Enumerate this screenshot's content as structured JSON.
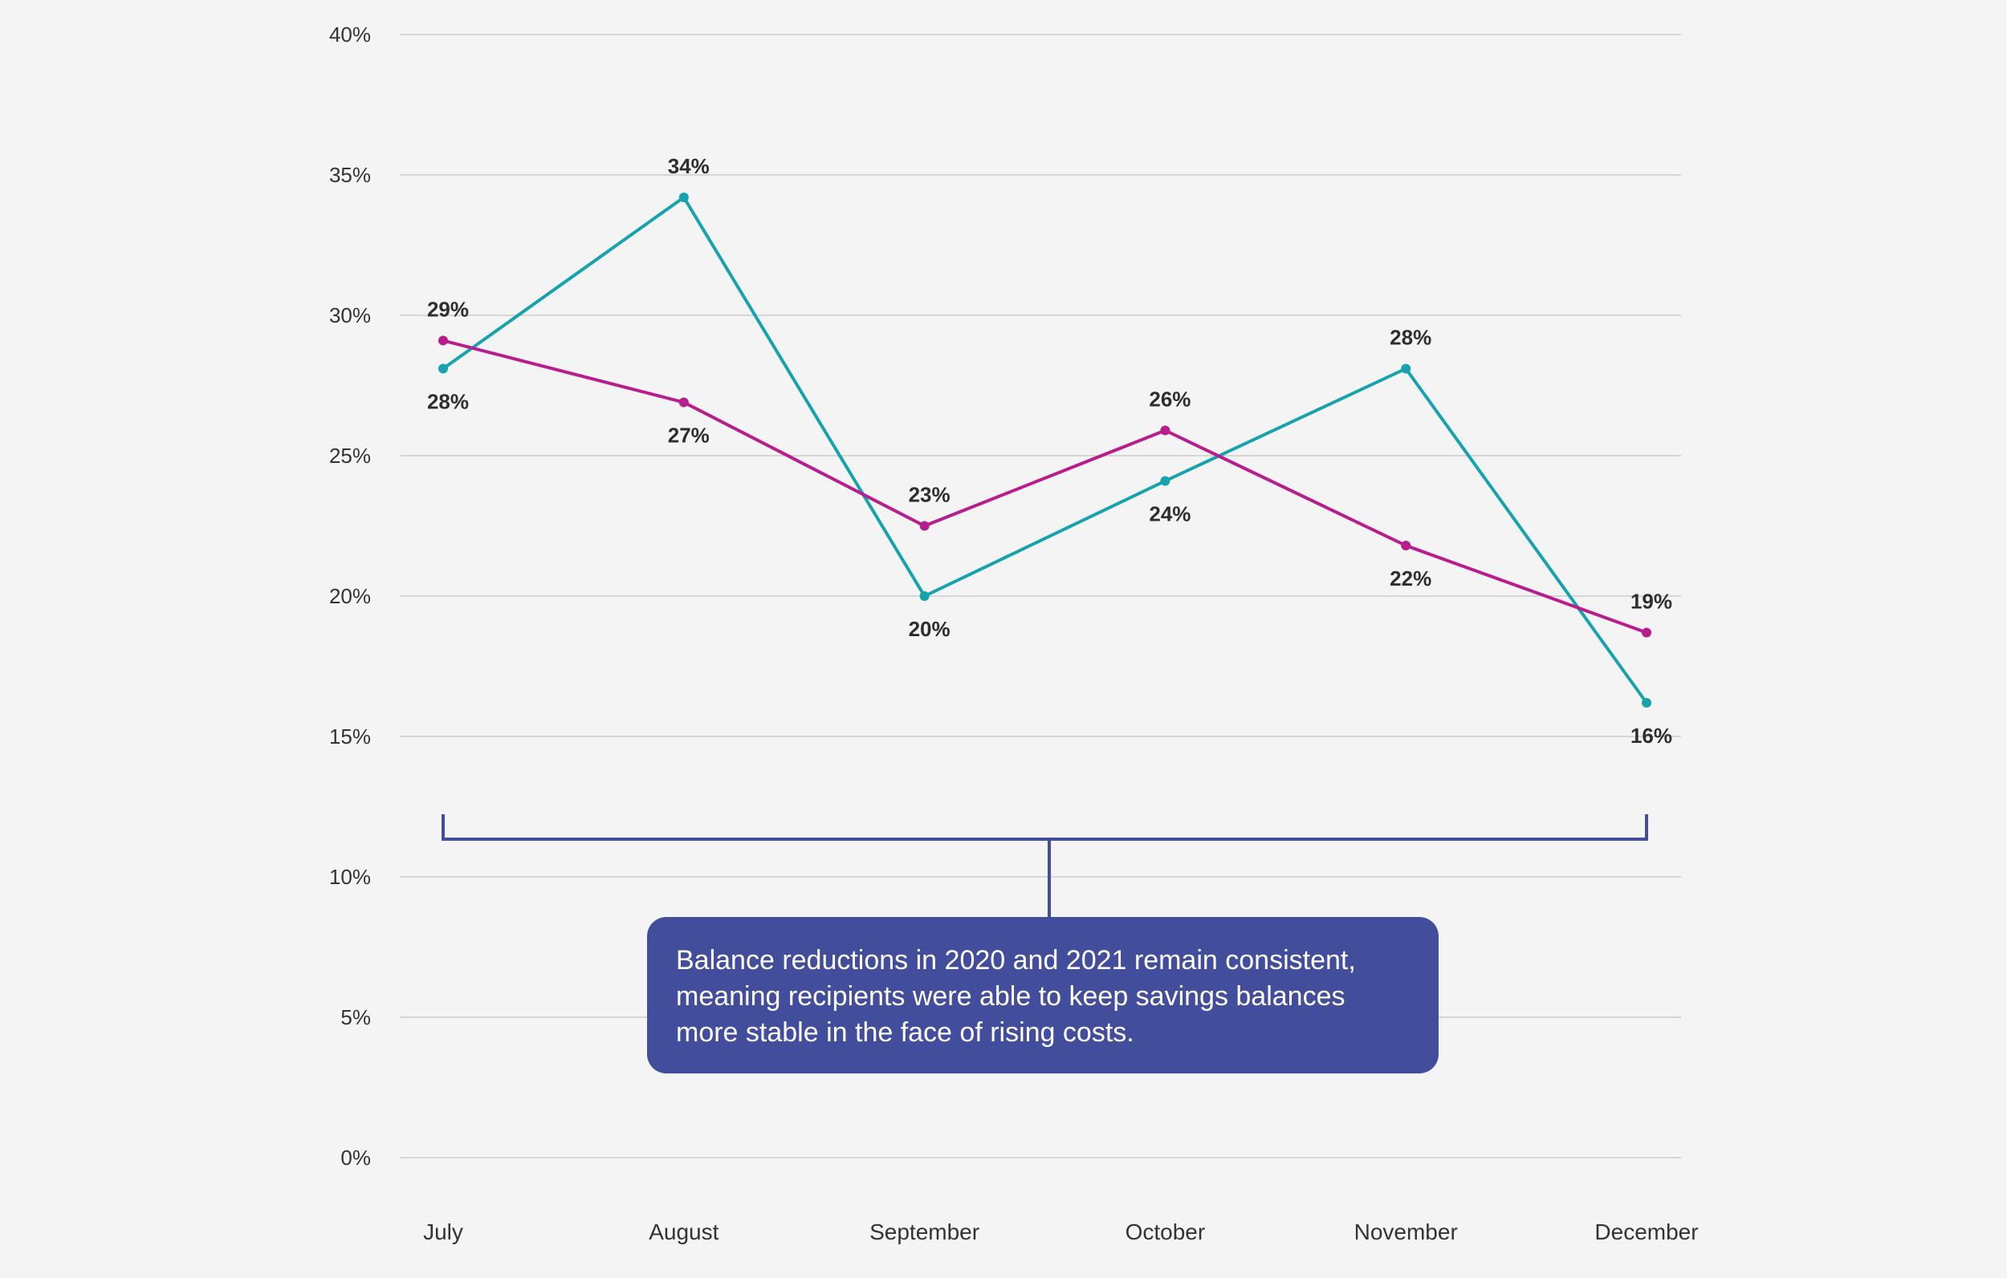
{
  "chart_data": {
    "type": "line",
    "title": "",
    "xlabel": "",
    "ylabel": "",
    "categories": [
      "July",
      "August",
      "September",
      "October",
      "November",
      "December"
    ],
    "ylim": [
      0,
      40
    ],
    "yticks": [
      0,
      5,
      10,
      15,
      20,
      25,
      30,
      35,
      40
    ],
    "ytick_labels": [
      "0%",
      "5%",
      "10%",
      "15%",
      "20%",
      "25%",
      "30%",
      "35%",
      "40%"
    ],
    "grid": true,
    "legend": "none",
    "series": [
      {
        "name": "Series A (teal)",
        "color": "#16a3ad",
        "values": [
          28.1,
          34.2,
          20.0,
          24.1,
          28.1,
          16.2
        ],
        "labels": [
          "28%",
          "34%",
          "20%",
          "24%",
          "28%",
          "16%"
        ],
        "label_position": [
          "below",
          "above",
          "below",
          "below",
          "above",
          "below"
        ]
      },
      {
        "name": "Series B (magenta)",
        "color": "#b81d8e",
        "values": [
          29.1,
          26.9,
          22.5,
          25.9,
          21.8,
          18.7
        ],
        "labels": [
          "29%",
          "27%",
          "23%",
          "26%",
          "22%",
          "19%"
        ],
        "label_position": [
          "above",
          "below",
          "above",
          "above",
          "below",
          "above"
        ]
      }
    ],
    "annotation": {
      "text": "Balance reductions in 2020 and 2021 remain consistent, meaning recipients were able to keep savings balances more stable in the face of rising costs.",
      "span": [
        "July",
        "December"
      ],
      "color": "#424d9c"
    }
  }
}
